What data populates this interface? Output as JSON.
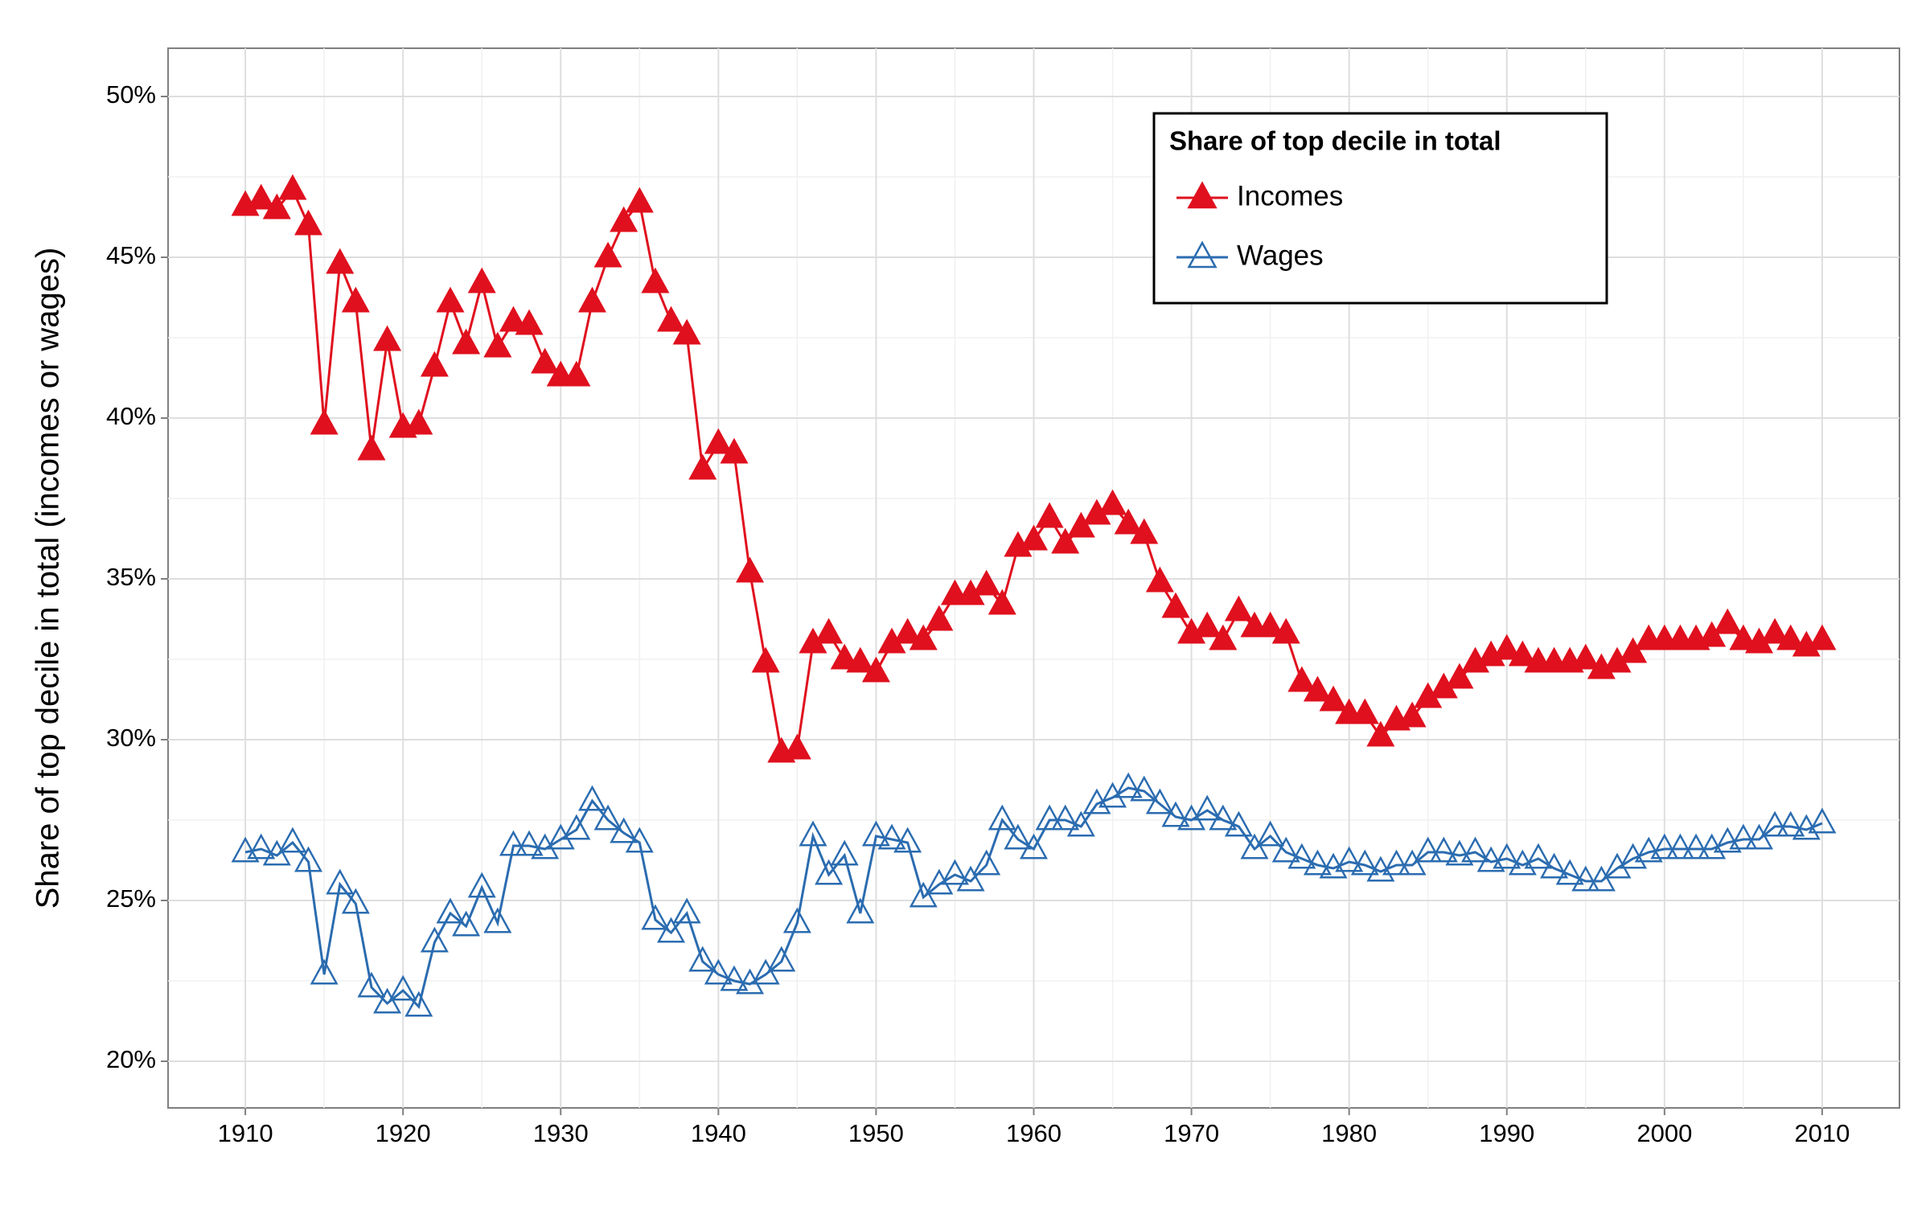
{
  "chart_data": {
    "type": "line",
    "y_label": "Share of top decile in total (incomes or wages)",
    "legend_title": "Share of top decile in total",
    "legend_position": "top-right",
    "grid": true,
    "x": [
      1910,
      1911,
      1912,
      1913,
      1914,
      1915,
      1916,
      1917,
      1918,
      1919,
      1920,
      1921,
      1922,
      1923,
      1924,
      1925,
      1926,
      1927,
      1928,
      1929,
      1930,
      1931,
      1932,
      1933,
      1934,
      1935,
      1936,
      1937,
      1938,
      1939,
      1940,
      1941,
      1942,
      1943,
      1944,
      1945,
      1946,
      1947,
      1948,
      1949,
      1950,
      1951,
      1952,
      1953,
      1954,
      1955,
      1956,
      1957,
      1958,
      1959,
      1960,
      1961,
      1962,
      1963,
      1964,
      1965,
      1966,
      1967,
      1968,
      1969,
      1970,
      1971,
      1972,
      1973,
      1974,
      1975,
      1976,
      1977,
      1978,
      1979,
      1980,
      1981,
      1982,
      1983,
      1984,
      1985,
      1986,
      1987,
      1988,
      1989,
      1990,
      1991,
      1992,
      1993,
      1994,
      1995,
      1996,
      1997,
      1998,
      1999,
      2000,
      2001,
      2002,
      2003,
      2004,
      2005,
      2006,
      2007,
      2008,
      2009,
      2010
    ],
    "series": [
      {
        "name": "Incomes",
        "color": "#e0101e",
        "marker": "filled-triangle",
        "values": [
          46.6,
          46.8,
          46.5,
          47.1,
          46.0,
          39.8,
          44.8,
          43.6,
          39.0,
          42.4,
          39.7,
          39.8,
          41.6,
          43.6,
          42.3,
          44.2,
          42.2,
          43.0,
          42.9,
          41.7,
          41.3,
          41.3,
          43.6,
          45.0,
          46.1,
          46.7,
          44.2,
          43.0,
          42.6,
          38.4,
          39.2,
          38.9,
          35.2,
          32.4,
          29.6,
          29.7,
          33.0,
          33.3,
          32.5,
          32.4,
          32.1,
          33.0,
          33.3,
          33.1,
          33.7,
          34.5,
          34.5,
          34.8,
          34.2,
          36.0,
          36.2,
          36.9,
          36.1,
          36.6,
          37.0,
          37.3,
          36.7,
          36.4,
          34.9,
          34.1,
          33.3,
          33.5,
          33.1,
          34.0,
          33.5,
          33.5,
          33.3,
          31.8,
          31.5,
          31.2,
          30.8,
          30.8,
          30.1,
          30.6,
          30.7,
          31.3,
          31.6,
          31.9,
          32.4,
          32.6,
          32.8,
          32.6,
          32.4,
          32.4,
          32.4,
          32.5,
          32.2,
          32.4,
          32.7,
          33.1,
          33.1,
          33.1,
          33.1,
          33.2,
          33.6,
          33.1,
          33.0,
          33.3,
          33.1,
          32.9,
          33.1
        ]
      },
      {
        "name": "Wages",
        "color": "#2b6cb0",
        "marker": "open-triangle",
        "values": [
          26.5,
          26.6,
          26.4,
          26.8,
          26.2,
          22.7,
          25.5,
          24.9,
          22.3,
          21.8,
          22.2,
          21.7,
          23.7,
          24.6,
          24.2,
          25.4,
          24.3,
          26.7,
          26.7,
          26.6,
          26.9,
          27.2,
          28.1,
          27.5,
          27.1,
          26.8,
          24.4,
          24.0,
          24.6,
          23.1,
          22.7,
          22.5,
          22.4,
          22.7,
          23.1,
          24.3,
          27.0,
          25.8,
          26.4,
          24.6,
          27.0,
          26.9,
          26.8,
          25.1,
          25.5,
          25.8,
          25.6,
          26.1,
          27.5,
          26.9,
          26.6,
          27.5,
          27.5,
          27.3,
          28.0,
          28.2,
          28.5,
          28.4,
          28.0,
          27.6,
          27.5,
          27.8,
          27.5,
          27.3,
          26.6,
          27.0,
          26.5,
          26.3,
          26.1,
          26.0,
          26.2,
          26.1,
          25.9,
          26.1,
          26.1,
          26.5,
          26.5,
          26.4,
          26.5,
          26.2,
          26.3,
          26.1,
          26.3,
          26.0,
          25.8,
          25.6,
          25.6,
          26.0,
          26.3,
          26.5,
          26.6,
          26.6,
          26.6,
          26.6,
          26.8,
          26.9,
          26.9,
          27.3,
          27.3,
          27.2,
          27.4
        ]
      }
    ],
    "xlim": [
      1905.1,
      2014.9
    ],
    "xticks": [
      1910,
      1920,
      1930,
      1940,
      1950,
      1960,
      1970,
      1980,
      1990,
      2000,
      2010
    ],
    "ylim": [
      18.55,
      51.5
    ],
    "yticks": [
      {
        "value": 20,
        "label": "20%"
      },
      {
        "value": 25,
        "label": "25%"
      },
      {
        "value": 30,
        "label": "30%"
      },
      {
        "value": 35,
        "label": "35%"
      },
      {
        "value": 40,
        "label": "40%"
      },
      {
        "value": 45,
        "label": "45%"
      },
      {
        "value": 50,
        "label": "50%"
      }
    ]
  }
}
